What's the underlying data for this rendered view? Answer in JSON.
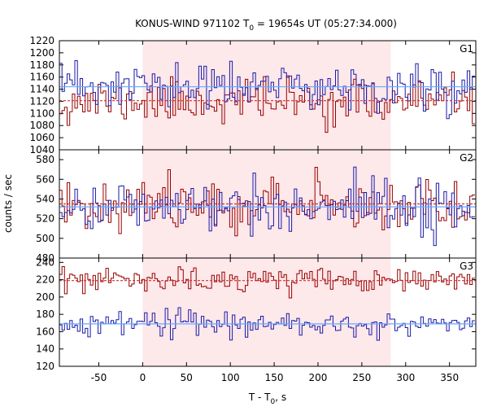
{
  "chart_data": {
    "type": "line",
    "title_main": "KONUS-WIND 971102 T",
    "title_sub": "0",
    "title_rest": " = 19654s UT (05:27:34.000)",
    "xlabel_main": "T - T",
    "xlabel_sub": "0",
    "xlabel_rest": ", s",
    "ylabel": "counts / sec",
    "xlim": [
      -95,
      380
    ],
    "xticks": [
      -50,
      0,
      50,
      100,
      150,
      200,
      250,
      300,
      350
    ],
    "xtick_labels": [
      "-50",
      "0",
      "50",
      "100",
      "150",
      "200",
      "250",
      "300",
      "350"
    ],
    "bin_width_s": 2.944,
    "highlight_interval": [
      0,
      283
    ],
    "colors": {
      "red_series": "#990000",
      "blue_series": "#1a1aa8",
      "red_fit": "#cc3333",
      "blue_fit": "#66aaff",
      "highlight": "#fde8ea",
      "grid": "#bbbbbb"
    },
    "panels": [
      {
        "name": "G1",
        "ylim": [
          1040,
          1220
        ],
        "yticks": [
          1040,
          1060,
          1080,
          1100,
          1120,
          1140,
          1160,
          1180,
          1200,
          1220
        ],
        "ytick_labels": [
          "1040",
          "1060",
          "1080",
          "1100",
          "1120",
          "1140",
          "1160",
          "1180",
          "1200",
          "1220"
        ],
        "series": [
          {
            "color": "red",
            "mean": 1120,
            "sigma": 18,
            "fit": 1121,
            "seed": 11
          },
          {
            "color": "blue",
            "mean": 1143,
            "sigma": 20,
            "fit": 1144,
            "seed": 23
          }
        ]
      },
      {
        "name": "G2",
        "ylim": [
          480,
          590
        ],
        "yticks": [
          480,
          500,
          520,
          540,
          560,
          580
        ],
        "ytick_labels": [
          "480",
          "500",
          "520",
          "540",
          "560",
          "580"
        ],
        "series": [
          {
            "color": "red",
            "mean": 535,
            "sigma": 12,
            "fit": 535,
            "seed": 37
          },
          {
            "color": "blue",
            "mean": 533,
            "sigma": 12,
            "fit": 532,
            "seed": 41
          }
        ]
      },
      {
        "name": "G3",
        "ylim": [
          120,
          245
        ],
        "yticks": [
          120,
          140,
          160,
          180,
          200,
          220,
          240
        ],
        "ytick_labels": [
          "120",
          "140",
          "160",
          "180",
          "200",
          "220",
          "240"
        ],
        "series": [
          {
            "color": "red",
            "mean": 219,
            "sigma": 7,
            "fit": 219,
            "seed": 53
          },
          {
            "color": "blue",
            "mean": 169,
            "sigma": 7,
            "fit": 169,
            "seed": 67
          }
        ]
      }
    ]
  }
}
